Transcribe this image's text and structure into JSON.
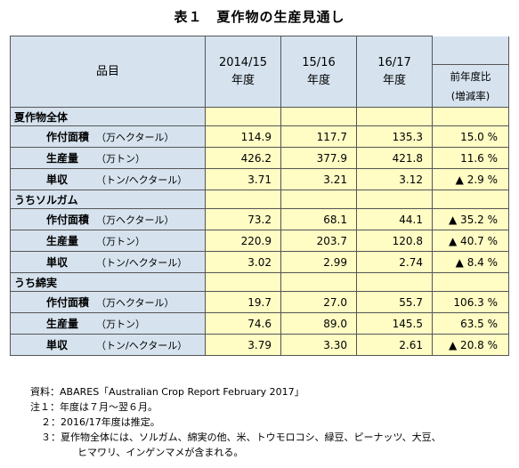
{
  "title": "表１　夏作物の生産見通し",
  "header": {
    "item": "品目",
    "years": [
      {
        "year": "2014/15",
        "suffix": "年度"
      },
      {
        "year": "15/16",
        "suffix": "年度"
      },
      {
        "year": "16/17",
        "suffix": "年度"
      }
    ],
    "change_label": "前年度比",
    "change_sub": "(増減率)"
  },
  "groups": [
    {
      "name": "夏作物全体",
      "rows": [
        {
          "name": "作付面積",
          "unit": "（万ヘクタール）",
          "v1": "114.9",
          "v2": "117.7",
          "v3": "135.3",
          "pct": "15.0 %"
        },
        {
          "name": "生産量",
          "unit": "（万トン）",
          "v1": "426.2",
          "v2": "377.9",
          "v3": "421.8",
          "pct": "11.6 %"
        },
        {
          "name": "単収",
          "unit": "（トン/ヘクタール）",
          "v1": "3.71",
          "v2": "3.21",
          "v3": "3.12",
          "pct": "▲ 2.9 %"
        }
      ]
    },
    {
      "name": "うちソルガム",
      "rows": [
        {
          "name": "作付面積",
          "unit": "（万ヘクタール）",
          "v1": "73.2",
          "v2": "68.1",
          "v3": "44.1",
          "pct": "▲ 35.2 %"
        },
        {
          "name": "生産量",
          "unit": "（万トン）",
          "v1": "220.9",
          "v2": "203.7",
          "v3": "120.8",
          "pct": "▲ 40.7 %"
        },
        {
          "name": "単収",
          "unit": "（トン/ヘクタール）",
          "v1": "3.02",
          "v2": "2.99",
          "v3": "2.74",
          "pct": "▲ 8.4 %"
        }
      ]
    },
    {
      "name": "うち綿実",
      "rows": [
        {
          "name": "作付面積",
          "unit": "（万ヘクタール）",
          "v1": "19.7",
          "v2": "27.0",
          "v3": "55.7",
          "pct": "106.3 %"
        },
        {
          "name": "生産量",
          "unit": "（万トン）",
          "v1": "74.6",
          "v2": "89.0",
          "v3": "145.5",
          "pct": "63.5 %"
        },
        {
          "name": "単収",
          "unit": "（トン/ヘクタール）",
          "v1": "3.79",
          "v2": "3.30",
          "v3": "2.61",
          "pct": "▲ 20.8 %"
        }
      ]
    }
  ],
  "notes": {
    "source": "資料：ABARES「Australian Crop Report February 2017」",
    "note1": "注１：年度は７月～翌６月。",
    "note2": "２：2016/17年度は推定。",
    "note3": "３：夏作物全体には、ソルガム、綿実の他、米、トウモロコシ、緑豆、ピーナッツ、大豆、",
    "note3b": "ヒマワリ、インゲンマメが含まれる。"
  }
}
